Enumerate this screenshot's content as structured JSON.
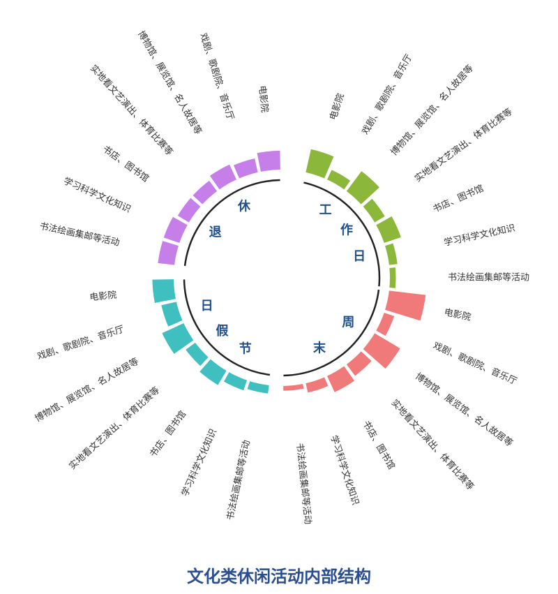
{
  "chart_data": {
    "type": "radial-bar",
    "title": "文化类休闲活动内部结构",
    "groups": [
      {
        "name": "工作日",
        "chars": [
          "工",
          "作",
          "日"
        ],
        "color": "#8bb83a",
        "categories": [
          "电影院",
          "戏剧、歌剧院、音乐厅",
          "博物馆、展览馆、名人故居等",
          "实地看文艺演出、体育比赛等",
          "书店、图书馆",
          "学习科学文化知识",
          "书法绘画集邮等活动"
        ],
        "values": [
          40,
          18,
          42,
          20,
          30,
          14,
          10
        ]
      },
      {
        "name": "周末",
        "chars": [
          "周",
          "末"
        ],
        "color": "#f07a7a",
        "categories": [
          "电影院",
          "戏剧、歌剧院、音乐厅",
          "博物馆、展览馆、名人故居等",
          "实地看文艺演出、体育比赛等",
          "书店、图书馆",
          "学习科学文化知识",
          "书法绘画集邮等活动"
        ],
        "values": [
          62,
          18,
          50,
          24,
          30,
          16,
          8
        ]
      },
      {
        "name": "节假日",
        "chars": [
          "节",
          "假",
          "日"
        ],
        "color": "#3fbfbf",
        "categories": [
          "电影院",
          "戏剧、歌剧院、音乐厅",
          "博物馆、展览馆、名人故居等",
          "实地看文艺演出、体育比赛等",
          "书店、图书馆",
          "学习科学文化知识",
          "书法绘画集邮等活动"
        ],
        "values": [
          36,
          26,
          40,
          20,
          28,
          18,
          14
        ]
      },
      {
        "name": "退休",
        "chars": [
          "退",
          "休"
        ],
        "color": "#c67ee8",
        "categories": [
          "电影院",
          "戏剧、歌剧院、音乐厅",
          "博物馆、展览馆、名人故居等",
          "实地看文艺演出、体育比赛等",
          "书店、图书馆",
          "学习科学文化知识",
          "书法绘画集邮等活动"
        ],
        "values": [
          32,
          24,
          28,
          22,
          22,
          28,
          28
        ]
      }
    ]
  }
}
